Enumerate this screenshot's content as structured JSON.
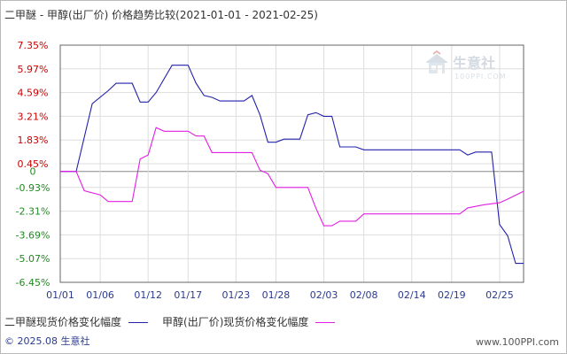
{
  "title": "二甲醚 - 甲醇(出厂价) 价格趋势比较(2021-01-01 - 2021-02-25)",
  "watermark_text": "生意社",
  "watermark_url": "100PPI.COM",
  "footer_left": "© 2025.08 生意社",
  "footer_right": "www.100PPI.com",
  "colors": {
    "series_1": "#2222aa",
    "series_2": "#e31ee3",
    "zero_line": "#888888",
    "grid": "#dddddd",
    "axis": "#666666",
    "tick_pos": "#cc0000",
    "tick_neg": "#228822",
    "tick_x": "#2a3a8f"
  },
  "chart_data": {
    "type": "line",
    "title": "二甲醚 - 甲醇(出厂价) 价格趋势比较(2021-01-01 - 2021-02-25)",
    "xlabel": "",
    "ylabel": "",
    "ylim": [
      -6.45,
      7.35
    ],
    "y_ticks": [
      "7.35%",
      "5.97%",
      "4.59%",
      "3.21%",
      "1.83%",
      "0.45%",
      "0",
      "-0.93%",
      "-2.31%",
      "-3.69%",
      "-5.07%",
      "-6.45%"
    ],
    "y_tick_values": [
      7.35,
      5.97,
      4.59,
      3.21,
      1.83,
      0.45,
      0,
      -0.93,
      -2.31,
      -3.69,
      -5.07,
      -6.45
    ],
    "x_ticks": [
      "01/01",
      "01/06",
      "01/12",
      "01/17",
      "01/23",
      "01/28",
      "02/03",
      "02/08",
      "02/14",
      "02/19",
      "02/25"
    ],
    "x_tick_days": [
      0,
      5,
      11,
      16,
      22,
      27,
      33,
      38,
      44,
      49,
      55
    ],
    "x_unit": "day index from 01/01",
    "grid": true,
    "legend_position": "bottom",
    "series": [
      {
        "name": "二甲醚现货价格变化幅度",
        "points": [
          [
            0,
            0
          ],
          [
            2,
            0
          ],
          [
            4,
            3.94
          ],
          [
            6,
            4.7
          ],
          [
            7,
            5.13
          ],
          [
            9,
            5.13
          ],
          [
            10,
            4.04
          ],
          [
            11,
            4.04
          ],
          [
            12,
            4.59
          ],
          [
            14,
            6.18
          ],
          [
            15,
            6.18
          ],
          [
            16,
            6.18
          ],
          [
            17,
            5.13
          ],
          [
            18,
            4.42
          ],
          [
            19,
            4.31
          ],
          [
            20,
            4.1
          ],
          [
            23,
            4.1
          ],
          [
            24,
            4.42
          ],
          [
            25,
            3.3
          ],
          [
            26,
            1.7
          ],
          [
            27,
            1.7
          ],
          [
            28,
            1.88
          ],
          [
            30,
            1.88
          ],
          [
            31,
            3.3
          ],
          [
            32,
            3.42
          ],
          [
            33,
            3.21
          ],
          [
            34,
            3.21
          ],
          [
            35,
            1.43
          ],
          [
            37,
            1.43
          ],
          [
            38,
            1.26
          ],
          [
            50,
            1.26
          ],
          [
            51,
            0.96
          ],
          [
            52,
            1.13
          ],
          [
            54,
            1.13
          ],
          [
            55,
            -3.09
          ],
          [
            56,
            -3.74
          ],
          [
            57,
            -5.35
          ],
          [
            58,
            -5.35
          ]
        ]
      },
      {
        "name": "甲醇(出厂价)现货价格变化幅度",
        "points": [
          [
            0,
            0
          ],
          [
            2,
            0
          ],
          [
            3,
            -1.12
          ],
          [
            5,
            -1.36
          ],
          [
            6,
            -1.75
          ],
          [
            9,
            -1.75
          ],
          [
            10,
            0.73
          ],
          [
            11,
            0.96
          ],
          [
            12,
            2.55
          ],
          [
            13,
            2.34
          ],
          [
            16,
            2.34
          ],
          [
            17,
            2.06
          ],
          [
            18,
            2.06
          ],
          [
            19,
            1.1
          ],
          [
            23,
            1.1
          ],
          [
            24,
            1.1
          ],
          [
            25,
            0.08
          ],
          [
            26,
            -0.13
          ],
          [
            27,
            -0.93
          ],
          [
            31,
            -0.93
          ],
          [
            32,
            -2.14
          ],
          [
            33,
            -3.16
          ],
          [
            34,
            -3.16
          ],
          [
            35,
            -2.89
          ],
          [
            37,
            -2.89
          ],
          [
            38,
            -2.47
          ],
          [
            50,
            -2.47
          ],
          [
            51,
            -2.12
          ],
          [
            53,
            -1.94
          ],
          [
            55,
            -1.82
          ],
          [
            56,
            -1.61
          ],
          [
            58,
            -1.15
          ]
        ]
      }
    ]
  }
}
